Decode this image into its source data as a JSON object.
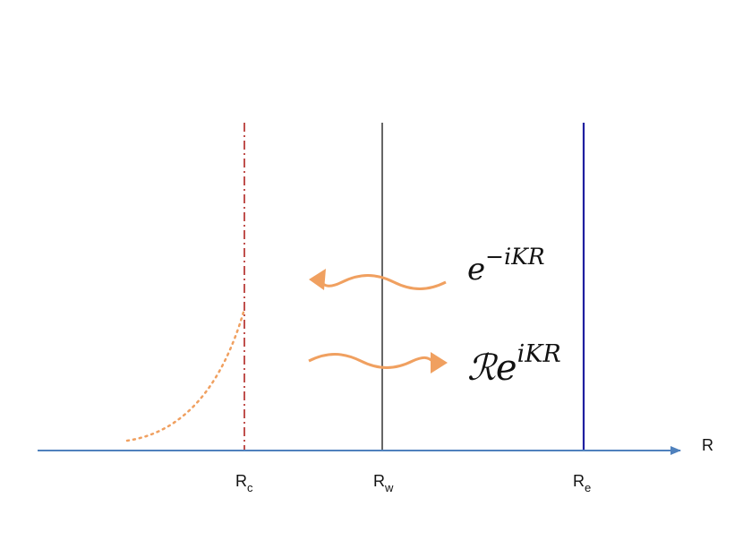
{
  "axis": {
    "label": "R"
  },
  "markers": [
    {
      "label": "R",
      "subscript": "c"
    },
    {
      "label": "R",
      "subscript": "w"
    },
    {
      "label": "R",
      "subscript": "e"
    }
  ],
  "waves": [
    {
      "base": "e",
      "exponent": "−iKR"
    },
    {
      "base": "ℛe",
      "exponent": "iKR"
    }
  ]
}
